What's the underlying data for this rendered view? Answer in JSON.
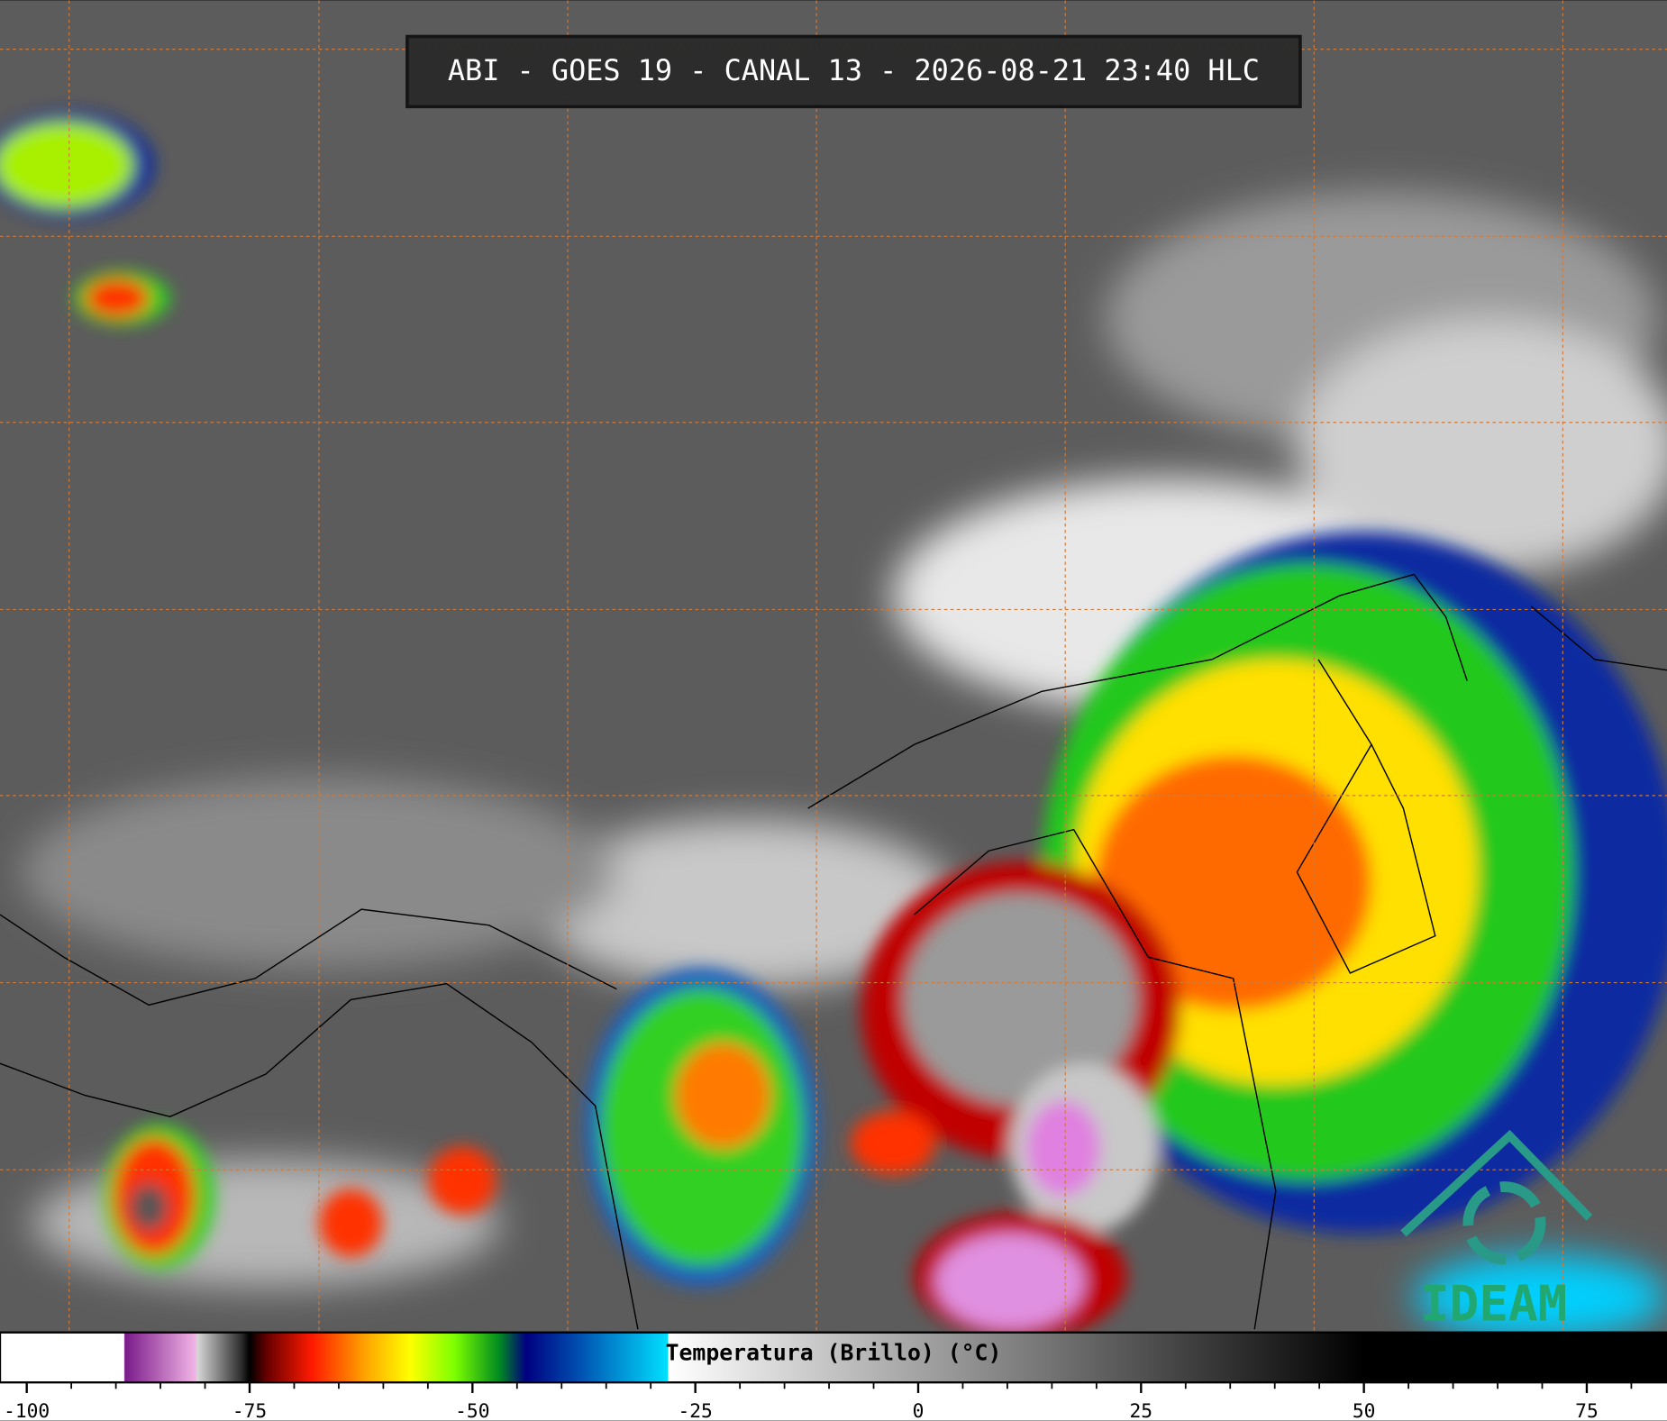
{
  "title": "ABI - GOES 19 - CANAL 13 - 2026-08-21 23:40 HLC",
  "logo": "IDEAM",
  "colorbar": {
    "label": "Temperatura (Brillo) (°C)",
    "xlim": [
      -103,
      84
    ],
    "ticks": [
      -100,
      -75,
      -50,
      -25,
      0,
      25,
      50,
      75
    ],
    "minor_ticks": [
      -95,
      -90,
      -85,
      -80,
      -70,
      -65,
      -60,
      -55,
      -45,
      -40,
      -35,
      -30,
      -20,
      -15,
      -10,
      -5,
      5,
      10,
      15,
      20,
      30,
      35,
      40,
      45,
      55,
      60,
      65,
      70,
      80
    ],
    "colormap": [
      {
        "value": -103,
        "color": "#ffffff"
      },
      {
        "value": -89.1,
        "color": "#ffffff"
      },
      {
        "value": -89,
        "color": "#7a1a8a"
      },
      {
        "value": -81,
        "color": "#f2b6e6"
      },
      {
        "value": -80.9,
        "color": "#d8d8d8"
      },
      {
        "value": -76,
        "color": "#303030"
      },
      {
        "value": -75,
        "color": "#000000"
      },
      {
        "value": -73,
        "color": "#6a0000"
      },
      {
        "value": -68,
        "color": "#ff1a00"
      },
      {
        "value": -62,
        "color": "#ffa500"
      },
      {
        "value": -57,
        "color": "#ffff00"
      },
      {
        "value": -52,
        "color": "#7cff00"
      },
      {
        "value": -47,
        "color": "#008a20"
      },
      {
        "value": -44,
        "color": "#000080"
      },
      {
        "value": -38,
        "color": "#0050b0"
      },
      {
        "value": -28.1,
        "color": "#00e0ff"
      },
      {
        "value": -28,
        "color": "#ffffff"
      },
      {
        "value": 50,
        "color": "#000000"
      },
      {
        "value": 84,
        "color": "#000000"
      }
    ]
  }
}
